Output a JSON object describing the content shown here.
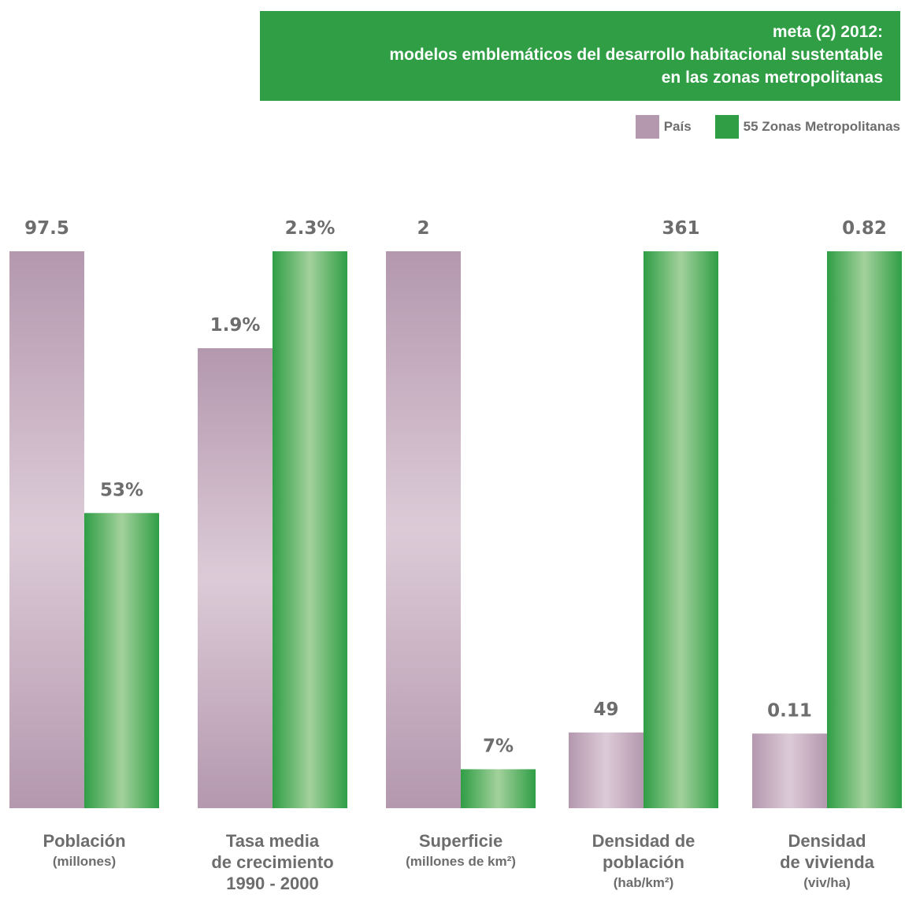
{
  "header": {
    "title_lines": [
      "meta (2) 2012:",
      "modelos emblemáticos del desarrollo habitacional sustentable",
      "en las zonas metropolitanas"
    ]
  },
  "legend": {
    "pais": "País",
    "zonas": "55 Zonas Metropolitanas"
  },
  "colors": {
    "pais": "#b498ae",
    "pais_light": "#dccbd7",
    "zonas": "#2f9e45",
    "zonas_light": "#a3d19c",
    "title_bg": "#2f9e45",
    "text": "#6d6d6d"
  },
  "chart_data": {
    "type": "bar",
    "categories": [
      {
        "lines": [
          "Población"
        ],
        "units": [
          "(millones)"
        ]
      },
      {
        "lines": [
          "Tasa media",
          "de crecimiento",
          "1990 - 2000"
        ],
        "units": []
      },
      {
        "lines": [
          "Superficie"
        ],
        "units": [
          "(millones de km²)"
        ]
      },
      {
        "lines": [
          "Densidad de",
          "población"
        ],
        "units": [
          "(hab/km²)"
        ]
      },
      {
        "lines": [
          "Densidad",
          "de vivienda"
        ],
        "units": [
          "(viv/ha)"
        ]
      }
    ],
    "series": [
      {
        "name": "País",
        "values": [
          97.5,
          1.9,
          2,
          49,
          0.11
        ],
        "labels": [
          "97.5",
          "1.9%",
          "2",
          "49",
          "0.11"
        ]
      },
      {
        "name": "55 Zonas Metropolitanas",
        "values": [
          53,
          2.3,
          7,
          361,
          0.82
        ],
        "labels": [
          "53%",
          "2.3%",
          "7%",
          "361",
          "0.82"
        ]
      }
    ],
    "relative_heights": [
      [
        1.0,
        0.826,
        1.0,
        0.136,
        0.134
      ],
      [
        0.53,
        1.0,
        0.07,
        1.0,
        1.0
      ]
    ],
    "legend_position": "top-right",
    "grid": false
  }
}
